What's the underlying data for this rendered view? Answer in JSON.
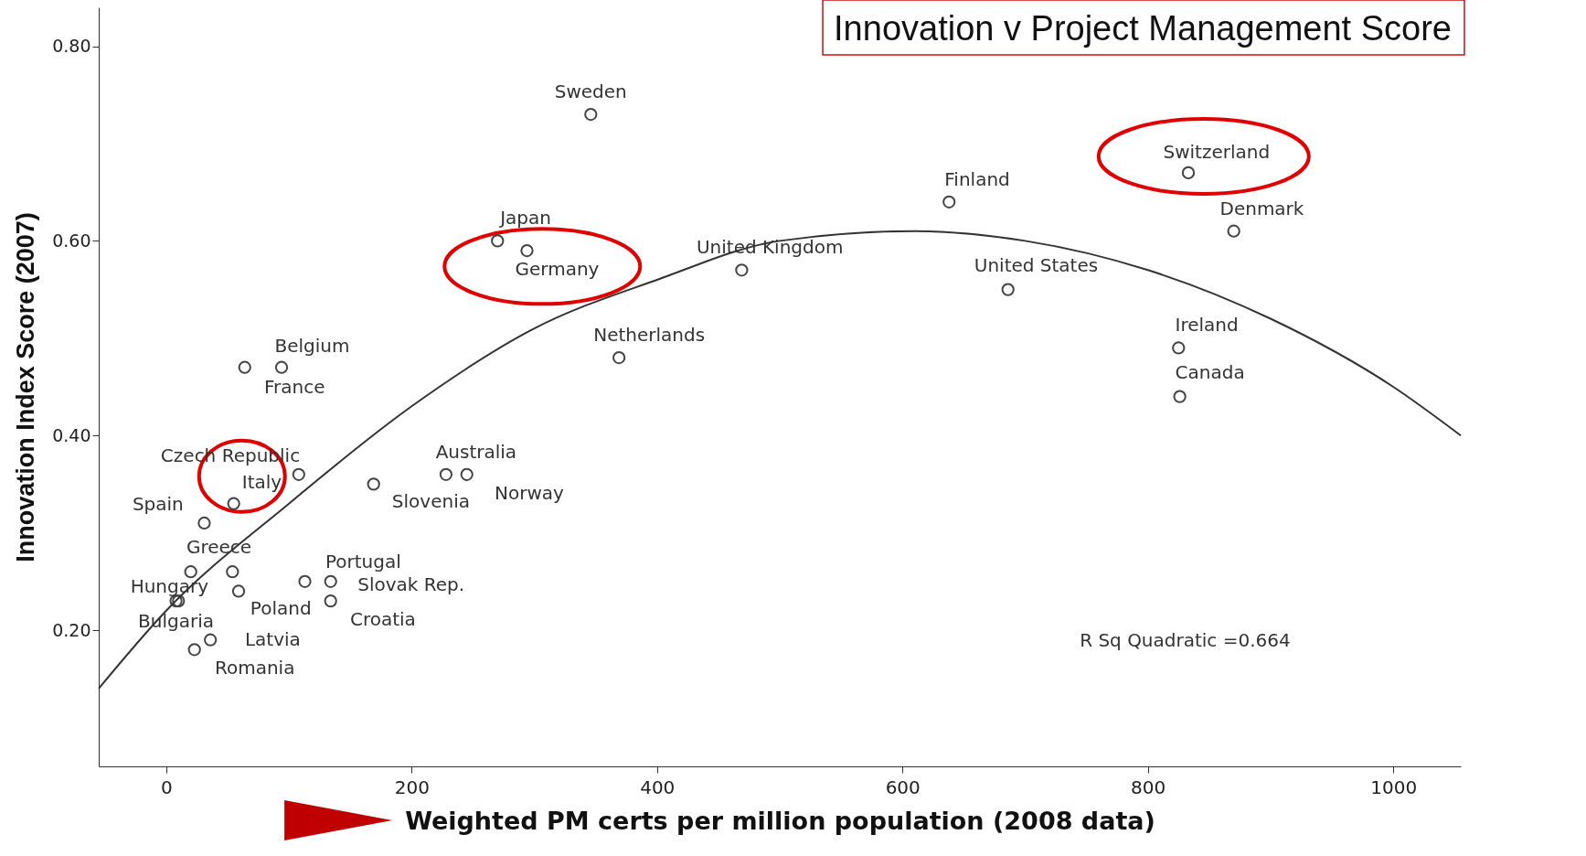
{
  "chart_data": {
    "type": "scatter",
    "title": "Innovation v Project Management Score",
    "xlabel": "Weighted PM certs per million population (2008 data)",
    "ylabel": "Innovation Index Score (2007)",
    "xlim": [
      -55,
      1055
    ],
    "xticks": [
      0,
      200,
      400,
      600,
      800,
      1000
    ],
    "ylim": [
      0.06,
      0.84
    ],
    "yticks": [
      {
        "value": 0.2,
        "label": "0.20"
      },
      {
        "value": 0.4,
        "label": "0.40"
      },
      {
        "value": 0.6,
        "label": "0.60"
      },
      {
        "value": 0.8,
        "label": "0.80"
      }
    ],
    "marker": "circle",
    "grid": false,
    "series": [
      {
        "color": "#444444",
        "x": [
          346,
          833,
          638,
          870,
          270,
          294,
          469,
          686,
          369,
          825,
          826,
          64,
          94,
          108,
          228,
          245,
          169,
          55,
          31,
          20,
          10,
          59,
          8,
          113,
          134,
          134,
          36,
          23,
          54
        ],
        "values": [
          0.73,
          0.67,
          0.64,
          0.61,
          0.6,
          0.59,
          0.57,
          0.55,
          0.48,
          0.49,
          0.44,
          0.47,
          0.47,
          0.36,
          0.36,
          0.36,
          0.35,
          0.33,
          0.31,
          0.26,
          0.23,
          0.24,
          0.23,
          0.25,
          0.25,
          0.23,
          0.19,
          0.18,
          0.26
        ]
      },
      {
        "type": "line",
        "marker": "none",
        "color": "#333333",
        "x": [
          -55,
          0,
          100,
          200,
          300,
          400,
          500,
          610,
          700,
          800,
          900,
          1000,
          1055
        ],
        "values": [
          0.14,
          0.22,
          0.33,
          0.43,
          0.51,
          0.56,
          0.6,
          0.61,
          0.6,
          0.57,
          0.52,
          0.45,
          0.4
        ]
      }
    ],
    "annotations": [
      {
        "text": "Sweden",
        "x": 346,
        "y": 0.73
      },
      {
        "text": "Switzerland",
        "x": 833,
        "y": 0.67
      },
      {
        "text": "Finland",
        "x": 638,
        "y": 0.64
      },
      {
        "text": "Denmark",
        "x": 870,
        "y": 0.61
      },
      {
        "text": "Japan",
        "x": 270,
        "y": 0.6
      },
      {
        "text": "Germany",
        "x": 294,
        "y": 0.59
      },
      {
        "text": "United Kingdom",
        "x": 469,
        "y": 0.57
      },
      {
        "text": "United States",
        "x": 686,
        "y": 0.55
      },
      {
        "text": "Netherlands",
        "x": 369,
        "y": 0.48
      },
      {
        "text": "Ireland",
        "x": 825,
        "y": 0.49
      },
      {
        "text": "Canada",
        "x": 826,
        "y": 0.44
      },
      {
        "text": "Belgium",
        "x": 64,
        "y": 0.47
      },
      {
        "text": "France",
        "x": 94,
        "y": 0.47
      },
      {
        "text": "Czech Republic",
        "x": 108,
        "y": 0.36
      },
      {
        "text": "Australia",
        "x": 228,
        "y": 0.36
      },
      {
        "text": "Norway",
        "x": 245,
        "y": 0.36
      },
      {
        "text": "Slovenia",
        "x": 169,
        "y": 0.35
      },
      {
        "text": "Italy",
        "x": 55,
        "y": 0.33
      },
      {
        "text": "Spain",
        "x": 31,
        "y": 0.31
      },
      {
        "text": "Greece",
        "x": 20,
        "y": 0.26
      },
      {
        "text": "Hungary",
        "x": 10,
        "y": 0.23
      },
      {
        "text": "Poland",
        "x": 59,
        "y": 0.24
      },
      {
        "text": "Bulgaria",
        "x": 8,
        "y": 0.23
      },
      {
        "text": "Portugal",
        "x": 113,
        "y": 0.25
      },
      {
        "text": "Slovak Rep.",
        "x": 134,
        "y": 0.25
      },
      {
        "text": "Croatia",
        "x": 134,
        "y": 0.23
      },
      {
        "text": "Latvia",
        "x": 36,
        "y": 0.19
      },
      {
        "text": "Romania",
        "x": 23,
        "y": 0.18
      },
      "R Sq Quadratic =0.664"
    ]
  }
}
